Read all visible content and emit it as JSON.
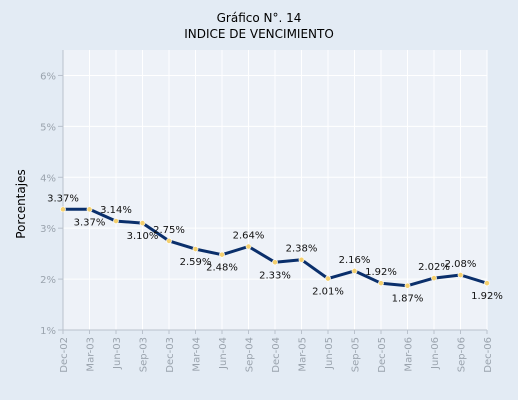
{
  "chart_data": {
    "type": "line",
    "title": "Gráfico N°. 14",
    "subtitle": "INDICE DE VENCIMIENTO",
    "xlabel": "",
    "ylabel": "Porcentajes",
    "categories": [
      "Dec-02",
      "Mar-03",
      "Jun-03",
      "Sep-03",
      "Dec-03",
      "Mar-04",
      "Jun-04",
      "Sep-04",
      "Dec-04",
      "Mar-05",
      "Jun-05",
      "Sep-05",
      "Dec-05",
      "Mar-06",
      "Jun-06",
      "Sep-06",
      "Dec-06"
    ],
    "series": [
      {
        "values": [
          3.37,
          3.37,
          3.14,
          3.1,
          2.75,
          2.59,
          2.48,
          2.64,
          2.33,
          2.38,
          2.01,
          2.16,
          1.92,
          1.87,
          2.02,
          2.08,
          1.92
        ]
      }
    ],
    "data_labels": [
      "3.37%",
      "3.37%",
      "3.14%",
      "3.10%",
      "2.75%",
      "2.59%",
      "2.48%",
      "2.64%",
      "2.33%",
      "2.38%",
      "2.01%",
      "2.16%",
      "1.92%",
      "1.87%",
      "2.02%",
      "2.08%",
      "1.92%"
    ],
    "ylim": [
      1,
      6.5
    ],
    "yticks": [
      1,
      2,
      3,
      4,
      5,
      6
    ],
    "ytick_labels": [
      "1%",
      "2%",
      "3%",
      "4%",
      "5%",
      "6%"
    ],
    "grid": true,
    "legend": "none",
    "colors": {
      "background": "#e3ebf4",
      "plot_background": "#eef2f8",
      "line": "#0a2f6b",
      "marker": "#f4d06f",
      "grid": "#ffffff",
      "axis": "#b9c1cc"
    }
  }
}
